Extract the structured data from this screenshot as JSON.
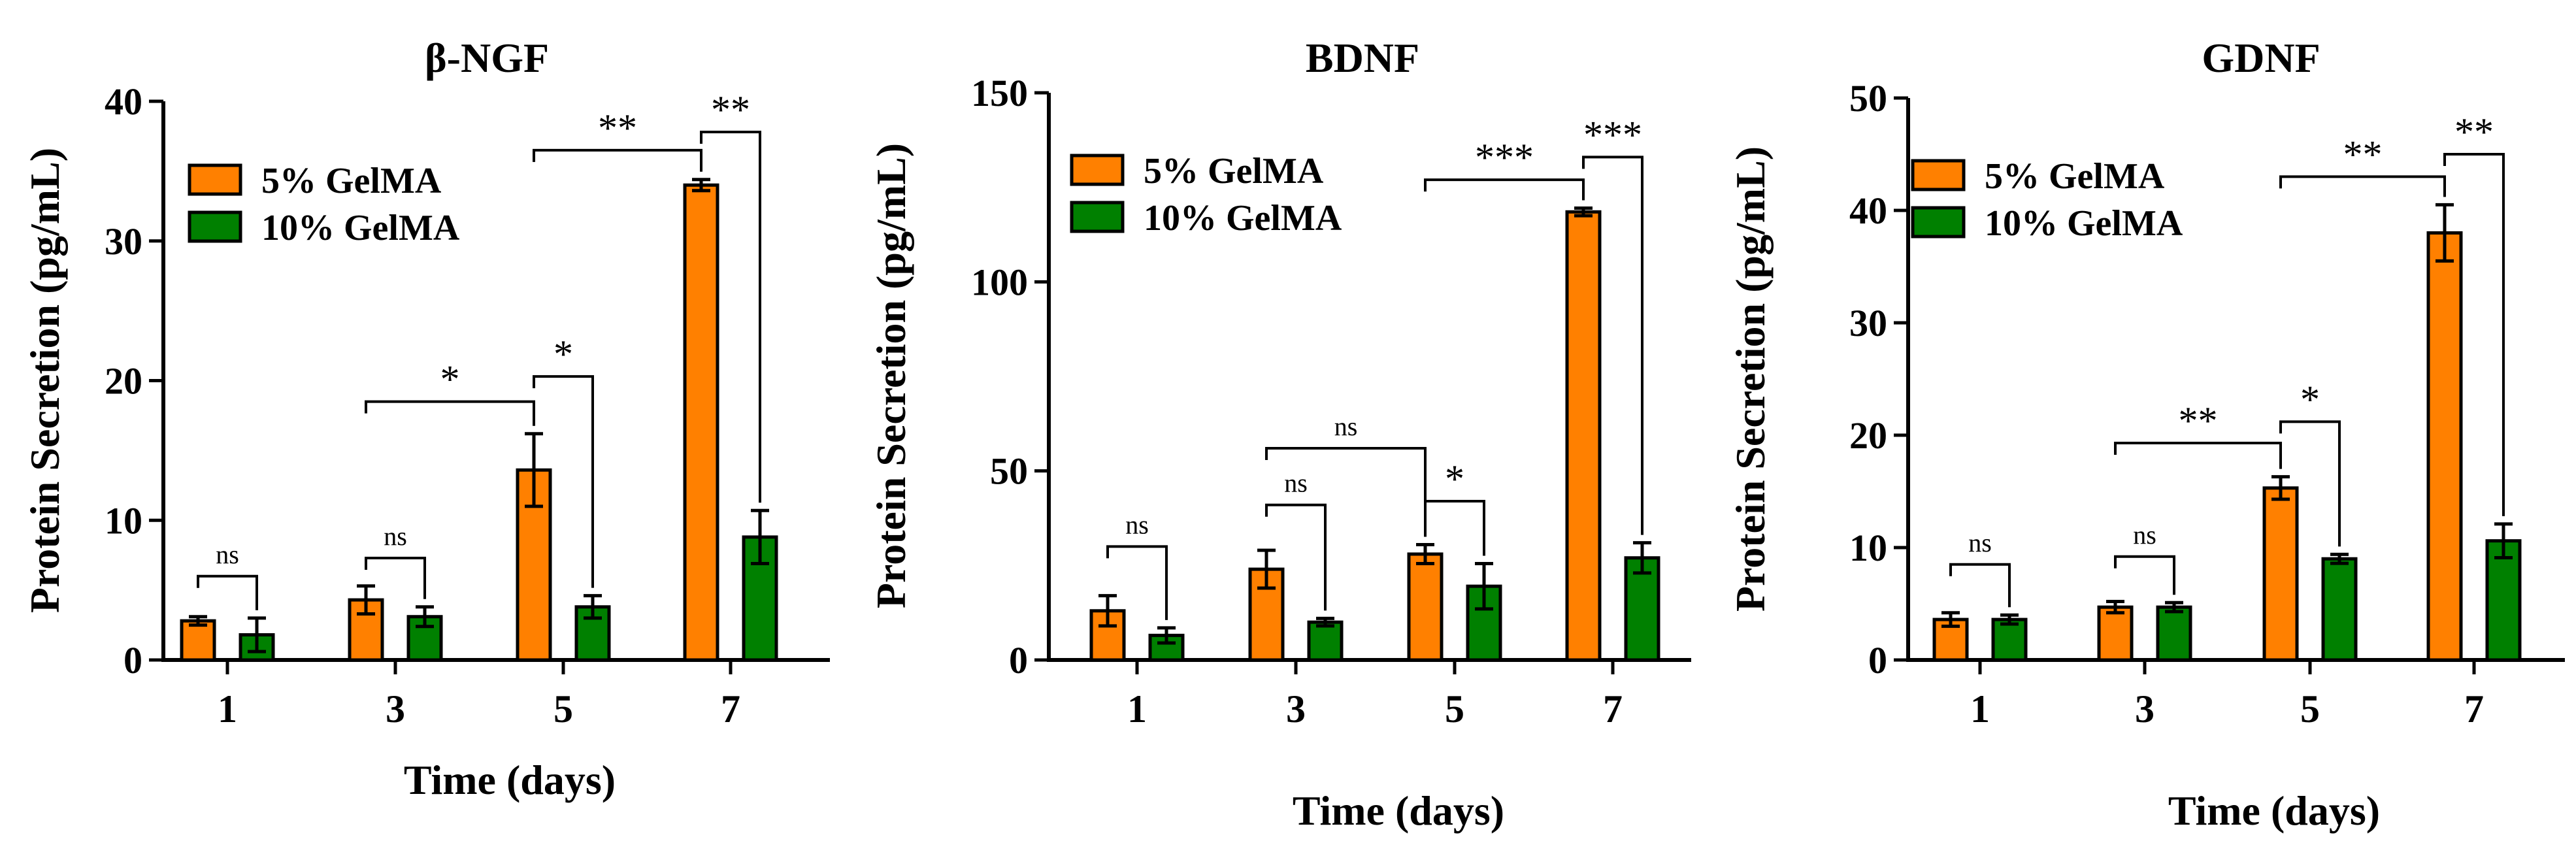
{
  "chart_data": [
    {
      "type": "bar",
      "title": "β-NGF",
      "xlabel": "Time (days)",
      "ylabel": "Protein Secretion (pg/mL)",
      "ylim": [
        0,
        40
      ],
      "yticks": [
        "0",
        "10",
        "20",
        "30",
        "40"
      ],
      "categories": [
        "1",
        "3",
        "5",
        "7"
      ],
      "series": [
        {
          "name": "5% GelMA",
          "color": "#ff8000",
          "values": [
            2.8,
            4.3,
            13.6,
            34.0
          ],
          "errors": [
            0.3,
            1.0,
            2.6,
            0.4
          ]
        },
        {
          "name": "10% GelMA",
          "color": "#008000",
          "values": [
            1.8,
            3.1,
            3.8,
            8.8
          ],
          "errors": [
            1.2,
            0.7,
            0.8,
            1.9
          ]
        }
      ],
      "brackets": [
        {
          "label": "ns",
          "from": [
            0,
            0
          ],
          "to": [
            0,
            1
          ],
          "y": 6
        },
        {
          "label": "ns",
          "from": [
            1,
            0
          ],
          "to": [
            1,
            1
          ],
          "y": 7.3
        },
        {
          "label": "*",
          "from": [
            1,
            0
          ],
          "to": [
            2,
            0
          ],
          "y": 18.5
        },
        {
          "label": "*",
          "from": [
            2,
            0
          ],
          "to": [
            2,
            1
          ],
          "y": 20.3
        },
        {
          "label": "**",
          "from": [
            2,
            0
          ],
          "to": [
            3,
            0
          ],
          "y": 36.5
        },
        {
          "label": "**",
          "from": [
            3,
            0
          ],
          "to": [
            3,
            1
          ],
          "y": 37.8
        }
      ]
    },
    {
      "type": "bar",
      "title": "BDNF",
      "xlabel": "Time (days)",
      "ylabel": "Protein Secretion (pg/mL)",
      "ylim": [
        0,
        150
      ],
      "yticks": [
        "0",
        "50",
        "100",
        "150"
      ],
      "categories": [
        "1",
        "3",
        "5",
        "7"
      ],
      "series": [
        {
          "name": "5% GelMA",
          "color": "#ff8000",
          "values": [
            13.0,
            24.0,
            28.0,
            118.5
          ],
          "errors": [
            4.0,
            5.0,
            2.5,
            1.0
          ]
        },
        {
          "name": "10% GelMA",
          "color": "#008000",
          "values": [
            6.5,
            10.0,
            19.5,
            27.0
          ],
          "errors": [
            2.0,
            1.0,
            6.0,
            4.0
          ]
        }
      ],
      "brackets": [
        {
          "label": "ns",
          "from": [
            0,
            0
          ],
          "to": [
            0,
            1
          ],
          "y": 30
        },
        {
          "label": "ns",
          "from": [
            1,
            0
          ],
          "to": [
            1,
            1
          ],
          "y": 41
        },
        {
          "label": "ns",
          "from": [
            1,
            0
          ],
          "to": [
            2,
            0
          ],
          "y": 56
        },
        {
          "label": "*",
          "from": [
            2,
            0
          ],
          "to": [
            2,
            1
          ],
          "y": 42
        },
        {
          "label": "***",
          "from": [
            2,
            0
          ],
          "to": [
            3,
            0
          ],
          "y": 127
        },
        {
          "label": "***",
          "from": [
            3,
            0
          ],
          "to": [
            3,
            1
          ],
          "y": 133
        }
      ]
    },
    {
      "type": "bar",
      "title": "GDNF",
      "xlabel": "Time (days)",
      "ylabel": "Protein Secretion (pg/mL)",
      "ylim": [
        0,
        50
      ],
      "yticks": [
        "0",
        "10",
        "20",
        "30",
        "40",
        "50"
      ],
      "categories": [
        "1",
        "3",
        "5",
        "7"
      ],
      "series": [
        {
          "name": "5% GelMA",
          "color": "#ff8000",
          "values": [
            3.6,
            4.7,
            15.3,
            38.0
          ],
          "errors": [
            0.6,
            0.5,
            1.0,
            2.5
          ]
        },
        {
          "name": "10% GelMA",
          "color": "#008000",
          "values": [
            3.6,
            4.7,
            9.0,
            10.6
          ],
          "errors": [
            0.4,
            0.4,
            0.4,
            1.5
          ]
        }
      ],
      "brackets": [
        {
          "label": "ns",
          "from": [
            0,
            0
          ],
          "to": [
            0,
            1
          ],
          "y": 8.5
        },
        {
          "label": "ns",
          "from": [
            1,
            0
          ],
          "to": [
            1,
            1
          ],
          "y": 9.2
        },
        {
          "label": "**",
          "from": [
            1,
            0
          ],
          "to": [
            2,
            0
          ],
          "y": 19.3
        },
        {
          "label": "*",
          "from": [
            2,
            0
          ],
          "to": [
            2,
            1
          ],
          "y": 21.2
        },
        {
          "label": "**",
          "from": [
            2,
            0
          ],
          "to": [
            3,
            0
          ],
          "y": 43
        },
        {
          "label": "**",
          "from": [
            3,
            0
          ],
          "to": [
            3,
            1
          ],
          "y": 45
        }
      ]
    }
  ]
}
